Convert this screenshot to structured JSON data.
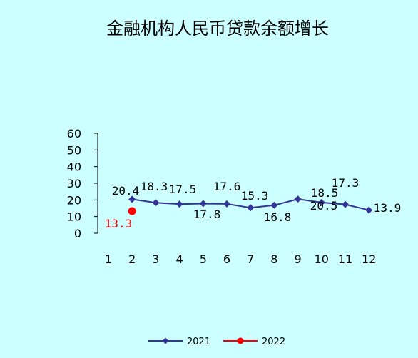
{
  "chart_data": {
    "type": "line",
    "title": "金融机构人民币贷款余额增长",
    "xlabel": "",
    "ylabel": "",
    "categories": [
      "1",
      "2",
      "3",
      "4",
      "5",
      "6",
      "7",
      "8",
      "9",
      "10",
      "11",
      "12"
    ],
    "ylim": [
      0,
      60
    ],
    "yticks": [
      "0",
      "10",
      "20",
      "30",
      "40",
      "50",
      "60"
    ],
    "grid": false,
    "legend_position": "bottom-center",
    "series": [
      {
        "name": "2021",
        "color": "#333399",
        "marker": "diamond",
        "x": [
          2,
          3,
          4,
          5,
          6,
          7,
          8,
          9,
          10,
          11,
          12
        ],
        "values": [
          20.4,
          18.3,
          17.5,
          17.8,
          17.6,
          15.3,
          16.8,
          20.5,
          18.5,
          17.3,
          13.9
        ],
        "labels": [
          "20.4",
          "18.3",
          "17.5",
          "17.8",
          "17.6",
          "15.3",
          "16.8",
          "20.5",
          "18.5",
          "17.3",
          "13.9"
        ]
      },
      {
        "name": "2022",
        "color": "#ff0000",
        "marker": "circle",
        "x": [
          2
        ],
        "values": [
          13.3
        ],
        "labels": [
          "13.3"
        ]
      }
    ]
  }
}
